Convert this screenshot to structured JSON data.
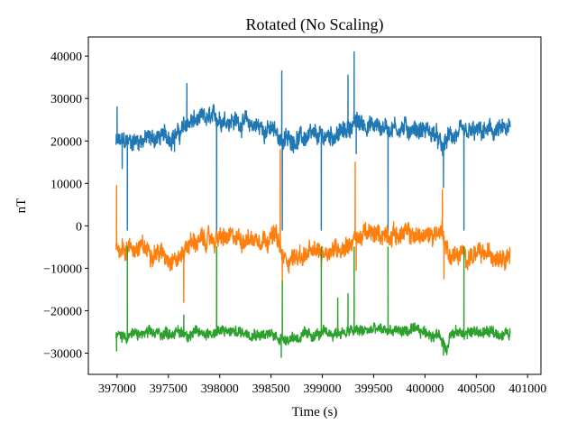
{
  "chart_data": {
    "type": "line",
    "title": "Rotated (No Scaling)",
    "xlabel": "Time (s)",
    "ylabel": "nT",
    "xlim": [
      396720,
      401130
    ],
    "ylim": [
      -35000,
      44500
    ],
    "xticks": [
      397000,
      397500,
      398000,
      398500,
      399000,
      399500,
      400000,
      400500,
      401000
    ],
    "xtick_labels": [
      "397000",
      "397500",
      "398000",
      "398500",
      "399000",
      "399500",
      "400000",
      "400500",
      "401000"
    ],
    "yticks": [
      -30000,
      -20000,
      -10000,
      0,
      10000,
      20000,
      30000,
      40000
    ],
    "ytick_labels": [
      "−30000",
      "−20000",
      "−10000",
      "0",
      "10000",
      "20000",
      "30000",
      "40000"
    ],
    "grid": false,
    "colors": [
      "#1f77b4",
      "#ff7f0e",
      "#2ca02c"
    ],
    "series": [
      {
        "color": "#1f77b4",
        "baseline": [
          [
            396990,
            19500
          ],
          [
            397300,
            20500
          ],
          [
            397600,
            21500
          ],
          [
            397700,
            24500
          ],
          [
            398000,
            25500
          ],
          [
            398300,
            24000
          ],
          [
            398550,
            22000
          ],
          [
            398620,
            20000
          ],
          [
            398700,
            20500
          ],
          [
            399000,
            21000
          ],
          [
            399200,
            22000
          ],
          [
            399330,
            24500
          ],
          [
            399500,
            23500
          ],
          [
            399800,
            23000
          ],
          [
            400000,
            22500
          ],
          [
            400100,
            21500
          ],
          [
            400170,
            18000
          ],
          [
            400230,
            21000
          ],
          [
            400500,
            22000
          ],
          [
            400830,
            22500
          ]
        ],
        "noise_amp": 2400,
        "spikes": [
          [
            397000,
            28000
          ],
          [
            397050,
            13500
          ],
          [
            397100,
            -1000
          ],
          [
            397560,
            17500
          ],
          [
            397680,
            33500
          ],
          [
            397970,
            -2000
          ],
          [
            398605,
            36500
          ],
          [
            398610,
            -1000
          ],
          [
            398990,
            -1000
          ],
          [
            399250,
            35500
          ],
          [
            399310,
            41000
          ],
          [
            399330,
            17000
          ],
          [
            399640,
            -1500
          ],
          [
            400180,
            9000
          ],
          [
            400380,
            -1000
          ]
        ]
      },
      {
        "color": "#ff7f0e",
        "baseline": [
          [
            396990,
            -5000
          ],
          [
            397300,
            -5500
          ],
          [
            397600,
            -8000
          ],
          [
            397700,
            -4000
          ],
          [
            398000,
            -3000
          ],
          [
            398300,
            -3000
          ],
          [
            398550,
            -2500
          ],
          [
            398620,
            -8000
          ],
          [
            398800,
            -7000
          ],
          [
            399000,
            -6000
          ],
          [
            399200,
            -5000
          ],
          [
            399400,
            -2000
          ],
          [
            399800,
            -2000
          ],
          [
            400000,
            -2500
          ],
          [
            400170,
            -1000
          ],
          [
            400230,
            -7000
          ],
          [
            400500,
            -7000
          ],
          [
            400830,
            -6500
          ]
        ],
        "noise_amp": 2500,
        "spikes": [
          [
            396995,
            9500
          ],
          [
            397050,
            -3000
          ],
          [
            397650,
            -18000
          ],
          [
            398590,
            18000
          ],
          [
            398610,
            -13500
          ],
          [
            398990,
            -10000
          ],
          [
            399320,
            15000
          ],
          [
            399330,
            -10500
          ],
          [
            399630,
            0
          ],
          [
            400170,
            8500
          ],
          [
            400185,
            -12500
          ]
        ]
      },
      {
        "color": "#2ca02c",
        "baseline": [
          [
            396990,
            -26000
          ],
          [
            397300,
            -25500
          ],
          [
            397600,
            -25000
          ],
          [
            397700,
            -25500
          ],
          [
            398000,
            -25000
          ],
          [
            398300,
            -25000
          ],
          [
            398550,
            -26000
          ],
          [
            398620,
            -26500
          ],
          [
            399000,
            -25500
          ],
          [
            399500,
            -24500
          ],
          [
            400000,
            -25000
          ],
          [
            400150,
            -26000
          ],
          [
            400210,
            -29000
          ],
          [
            400240,
            -25500
          ],
          [
            400500,
            -25000
          ],
          [
            400830,
            -25500
          ]
        ],
        "noise_amp": 1500,
        "spikes": [
          [
            396995,
            -29500
          ],
          [
            397100,
            -5000
          ],
          [
            397650,
            -21000
          ],
          [
            397970,
            -5000
          ],
          [
            398600,
            -31000
          ],
          [
            398610,
            -13000
          ],
          [
            398990,
            -5000
          ],
          [
            399150,
            -17000
          ],
          [
            399250,
            -16000
          ],
          [
            399310,
            -5000
          ],
          [
            399640,
            -5000
          ],
          [
            400180,
            -30500
          ],
          [
            400380,
            -5000
          ]
        ]
      }
    ]
  }
}
